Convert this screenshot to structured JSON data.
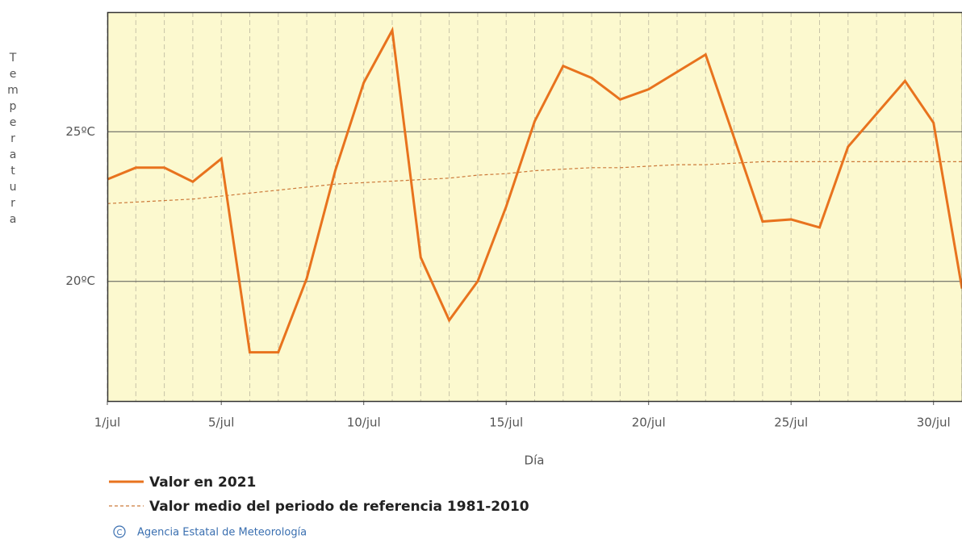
{
  "chart_data": {
    "type": "line",
    "y_label": "Temperatura",
    "x_label": "Día",
    "x": [
      1,
      2,
      3,
      4,
      5,
      6,
      7,
      8,
      9,
      10,
      11,
      12,
      13,
      14,
      15,
      16,
      17,
      18,
      19,
      20,
      21,
      22,
      23,
      24,
      25,
      26,
      27,
      28,
      29,
      30,
      31
    ],
    "series": [
      {
        "name": "Valor en 2021",
        "color": "#e8731e",
        "style": "solid",
        "values": [
          23.41,
          23.8,
          23.8,
          23.33,
          24.1,
          17.63,
          17.63,
          20.1,
          23.7,
          26.64,
          28.39,
          20.8,
          18.7,
          20.0,
          22.5,
          25.35,
          27.2,
          26.8,
          26.08,
          26.42,
          27.0,
          27.58,
          24.8,
          22.0,
          22.07,
          21.8,
          24.5,
          25.6,
          26.7,
          25.3,
          19.76
        ]
      },
      {
        "name": "Valor medio del periodo de referencia 1981-2010",
        "color": "#cc7a3a",
        "style": "dashed",
        "values": [
          22.6,
          22.65,
          22.7,
          22.75,
          22.85,
          22.95,
          23.05,
          23.15,
          23.25,
          23.3,
          23.35,
          23.4,
          23.45,
          23.55,
          23.6,
          23.7,
          23.75,
          23.8,
          23.8,
          23.85,
          23.9,
          23.9,
          23.95,
          24.0,
          24.0,
          24.0,
          24.0,
          24.0,
          24.0,
          24.0,
          24.0
        ]
      }
    ],
    "xlim": [
      1,
      31
    ],
    "xticks": [
      {
        "value": 1,
        "label": "1/jul"
      },
      {
        "value": 5,
        "label": "5/jul"
      },
      {
        "value": 10,
        "label": "10/jul"
      },
      {
        "value": 15,
        "label": "15/jul"
      },
      {
        "value": 20,
        "label": "20/jul"
      },
      {
        "value": 25,
        "label": "25/jul"
      },
      {
        "value": 30,
        "label": "30/jul"
      }
    ],
    "ylim": [
      16,
      29
    ],
    "yticks": [
      {
        "value": 20,
        "label": "20ºC"
      },
      {
        "value": 25,
        "label": "25ºC"
      }
    ],
    "grid": true,
    "background": "#fcf9cf",
    "footer": "Agencia Estatal de Meteorología"
  }
}
